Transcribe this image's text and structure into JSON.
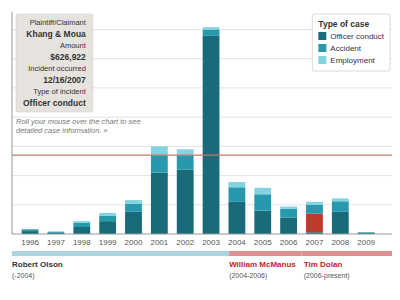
{
  "chart_data": {
    "type": "bar",
    "stacked": true,
    "x": [
      1996,
      1997,
      1998,
      1999,
      2000,
      2001,
      2002,
      2003,
      2004,
      2005,
      2006,
      2007,
      2008,
      2009
    ],
    "xlim": [
      1995.3,
      2010.0
    ],
    "xticks": [
      1996,
      1997,
      1998,
      1999,
      2000,
      2001,
      2002,
      2003,
      2004,
      2005,
      2006,
      2007,
      2008,
      2009
    ],
    "ylim": [
      0,
      38
    ],
    "yticks": [
      5,
      10,
      15,
      20,
      25,
      30,
      35
    ],
    "grid": true,
    "tick_labels": "x",
    "legend": "upper right",
    "legend_title": "Type of case",
    "series": [
      {
        "name": "Officer conduct",
        "color": "#1a6b7a",
        "values": [
          0.5,
          0.2,
          1.2,
          2.2,
          3.8,
          10.5,
          11.0,
          34.0,
          5.5,
          4.0,
          2.8,
          0.3,
          3.8,
          0.2
        ]
      },
      {
        "color": "#c0392b",
        "values": [
          null,
          null,
          null,
          null,
          null,
          null,
          null,
          null,
          null,
          null,
          null,
          3.2,
          null,
          null
        ]
      },
      {
        "name": "Accident",
        "color": "#2699ad",
        "values": [
          0.3,
          0.2,
          0.7,
          0.9,
          1.4,
          3.0,
          2.5,
          1.0,
          2.5,
          2.8,
          1.5,
          1.5,
          1.8,
          0.1
        ]
      },
      {
        "name": "Employment",
        "color": "#82d4e0",
        "values": [
          0.0,
          0.0,
          0.3,
          0.5,
          0.6,
          1.5,
          1.0,
          0.4,
          0.9,
          1.1,
          0.4,
          0.5,
          0.5,
          0.0
        ]
      }
    ],
    "reference_line": {
      "value": 13.5,
      "color": "#c9776a"
    },
    "roll_text": "Roll your mouse over the chart to see detailed case information. »",
    "tooltip": [
      "Plaintiff/Claimant",
      "Khang & Moua",
      "Amount",
      "$626,922",
      "Incident occurred",
      "12/16/2007",
      "Type of incident",
      "Officer conduct"
    ],
    "chiefs": [
      {
        "name": "Robert Olson",
        "label": "(-2004)",
        "start": 1995.3,
        "end": 2003.7,
        "color": "#aad5de",
        "name_color": "#333333"
      },
      {
        "name": "William McManus",
        "label": "(2004-2006)",
        "start": 2003.7,
        "end": 2006.5,
        "color": "#e09090",
        "name_color": "#cc2222"
      },
      {
        "name": "Tim Dolan",
        "label": "(2006-present)",
        "start": 2006.5,
        "end": 2010.0,
        "color": "#e09090",
        "name_color": "#cc2222"
      }
    ]
  }
}
